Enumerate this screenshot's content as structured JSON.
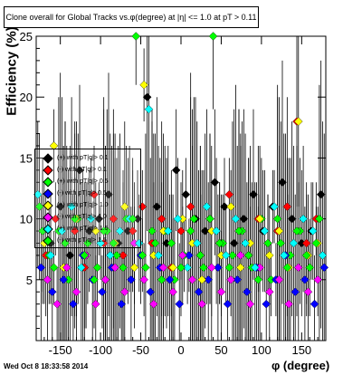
{
  "chart_data": {
    "type": "scatter",
    "title": "Clone overall for Global Tracks vs.φ(degree) at |η| <= 1.0 at pT > 0.11",
    "xlabel": "φ (degree)",
    "ylabel": "Efficiency (%)",
    "xlim": [
      -180,
      180
    ],
    "ylim": [
      0,
      25
    ],
    "x_ticks": [
      -150,
      -100,
      -50,
      0,
      50,
      100,
      150
    ],
    "y_ticks": [
      5,
      10,
      15,
      20,
      25
    ],
    "grid": false,
    "legend_position": "left-middle",
    "series": [
      {
        "name": "(+) with pT|q|> 0.1",
        "color": "#000000",
        "x": [
          -172,
          -162,
          -150,
          -138,
          -126,
          -114,
          -102,
          -90,
          -78,
          -66,
          -54,
          -42,
          -30,
          -18,
          -6,
          6,
          18,
          30,
          42,
          54,
          66,
          78,
          90,
          102,
          114,
          126,
          138,
          150,
          162,
          174
        ],
        "values": [
          9,
          8,
          11,
          7,
          14,
          9,
          10,
          12,
          8,
          9,
          10,
          20,
          11,
          8,
          14,
          12,
          10,
          9,
          13,
          11,
          8,
          10,
          12,
          9,
          11,
          13,
          10,
          8,
          9,
          12
        ]
      },
      {
        "name": "(-) with pT|q|> 0.1",
        "color": "#ff0000",
        "x": [
          -168,
          -156,
          -144,
          -132,
          -120,
          -108,
          -96,
          -84,
          -72,
          -60,
          -48,
          -36,
          -24,
          -12,
          0,
          12,
          24,
          36,
          48,
          60,
          72,
          84,
          96,
          108,
          120,
          132,
          144,
          156,
          168
        ],
        "values": [
          7,
          10,
          8,
          9,
          6,
          12,
          8,
          10,
          7,
          9,
          11,
          8,
          10,
          6,
          9,
          11,
          7,
          10,
          8,
          12,
          9,
          7,
          10,
          8,
          9,
          11,
          18,
          8,
          10
        ]
      },
      {
        "name": "(+) with pT|q|> 0.5",
        "color": "#00ff00",
        "x": [
          -176,
          -164,
          -152,
          -140,
          -128,
          -116,
          -104,
          -92,
          -80,
          -68,
          -56,
          -44,
          -32,
          -20,
          -8,
          4,
          16,
          28,
          40,
          52,
          64,
          76,
          88,
          100,
          112,
          124,
          136,
          148,
          160,
          172
        ],
        "values": [
          11,
          7,
          9,
          5,
          10,
          8,
          6,
          9,
          7,
          10,
          25,
          6,
          8,
          9,
          5,
          7,
          10,
          6,
          25,
          8,
          7,
          9,
          6,
          10,
          5,
          8,
          7,
          9,
          6,
          10
        ]
      },
      {
        "name": "(-) with pT|q|> 0.5",
        "color": "#0000ff",
        "x": [
          -174,
          -160,
          -146,
          -134,
          -122,
          -110,
          -98,
          -86,
          -74,
          -62,
          -50,
          -38,
          -26,
          -14,
          -2,
          10,
          22,
          34,
          46,
          58,
          70,
          82,
          94,
          106,
          118,
          130,
          142,
          154,
          166,
          178
        ],
        "values": [
          6,
          4,
          5,
          3,
          7,
          5,
          4,
          6,
          3,
          5,
          7,
          4,
          6,
          5,
          3,
          7,
          4,
          5,
          6,
          3,
          5,
          4,
          6,
          3,
          5,
          7,
          4,
          5,
          3,
          6
        ]
      },
      {
        "name": "(+) with pT|q|> 1.0",
        "color": "#ffff00",
        "x": [
          -170,
          -158,
          -146,
          -130,
          -118,
          -106,
          -94,
          -82,
          -70,
          -58,
          -46,
          -34,
          -22,
          -10,
          2,
          14,
          26,
          38,
          50,
          62,
          74,
          86,
          98,
          110,
          122,
          134,
          146,
          158,
          170
        ],
        "values": [
          8,
          16,
          6,
          10,
          7,
          9,
          5,
          8,
          11,
          6,
          21,
          7,
          9,
          6,
          10,
          8,
          5,
          9,
          7,
          11,
          6,
          8,
          10,
          7,
          9,
          6,
          18,
          7,
          8
        ]
      },
      {
        "name": "(-) with pT|q|> 1.0",
        "color": "#ff00ff",
        "x": [
          -166,
          -154,
          -142,
          -130,
          -118,
          -106,
          -94,
          -82,
          -70,
          -58,
          -46,
          -34,
          -22,
          -10,
          2,
          14,
          26,
          38,
          50,
          62,
          74,
          86,
          98,
          110,
          122,
          134,
          146,
          158,
          170
        ],
        "values": [
          5,
          3,
          6,
          4,
          7,
          3,
          5,
          6,
          4,
          8,
          5,
          3,
          6,
          4,
          7,
          5,
          3,
          6,
          4,
          5,
          7,
          3,
          6,
          4,
          5,
          3,
          6,
          4,
          5
        ]
      },
      {
        "name": "(+) with pT|q|> 1.5",
        "color": "#00ffff",
        "x": [
          -178,
          -162,
          -148,
          -136,
          -124,
          -112,
          -100,
          -88,
          -76,
          -64,
          -52,
          -40,
          -28,
          -16,
          -4,
          8,
          20,
          32,
          44,
          56,
          68,
          80,
          92,
          104,
          116,
          128,
          140,
          152,
          164,
          176
        ],
        "values": [
          12,
          7,
          9,
          11,
          6,
          10,
          8,
          7,
          9,
          10,
          8,
          19,
          7,
          9,
          10,
          6,
          8,
          11,
          9,
          7,
          10,
          8,
          6,
          9,
          11,
          7,
          8,
          10,
          9,
          7
        ]
      },
      {
        "name": "(-) with pT|q|> 1.5",
        "color": "#00ff00",
        "x": [
          -172,
          -158,
          -144,
          -132,
          -120,
          -108,
          -96,
          -84,
          -72,
          -60,
          -48,
          -36,
          -24,
          -12,
          0,
          12,
          24,
          36,
          48,
          60,
          72,
          84,
          96,
          108,
          120,
          132,
          144,
          156,
          168
        ],
        "values": [
          9,
          6,
          8,
          10,
          7,
          5,
          9,
          8,
          6,
          10,
          7,
          9,
          5,
          8,
          6,
          9,
          7,
          10,
          8,
          6,
          9,
          7,
          5,
          8,
          10,
          6,
          9,
          7,
          8
        ]
      }
    ]
  },
  "footer": {
    "timestamp": "Wed Oct  8 18:33:58 2014"
  }
}
